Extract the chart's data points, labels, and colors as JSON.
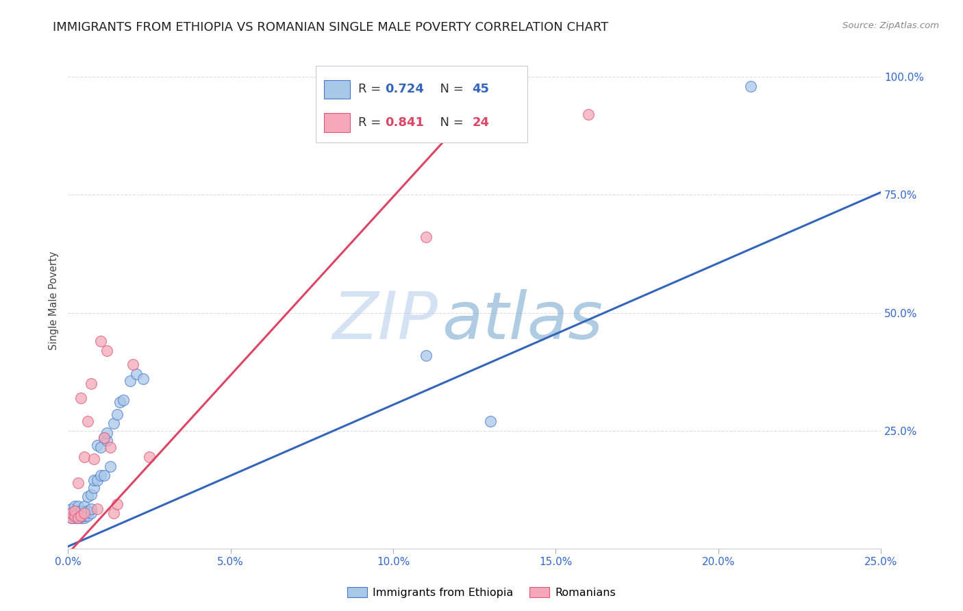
{
  "title": "IMMIGRANTS FROM ETHIOPIA VS ROMANIAN SINGLE MALE POVERTY CORRELATION CHART",
  "source": "Source: ZipAtlas.com",
  "ylabel": "Single Male Poverty",
  "xlim": [
    0.0,
    0.25
  ],
  "ylim": [
    0.0,
    1.05
  ],
  "xticks": [
    0.0,
    0.05,
    0.1,
    0.15,
    0.2,
    0.25
  ],
  "yticks": [
    0.0,
    0.25,
    0.5,
    0.75,
    1.0
  ],
  "xticklabels": [
    "0.0%",
    "5.0%",
    "10.0%",
    "15.0%",
    "20.0%",
    "25.0%"
  ],
  "yticklabels_right": [
    "",
    "25.0%",
    "50.0%",
    "75.0%",
    "100.0%"
  ],
  "blue_R": 0.724,
  "blue_N": 45,
  "pink_R": 0.841,
  "pink_N": 24,
  "blue_color": "#A8C8E8",
  "pink_color": "#F4A8B8",
  "blue_edge_color": "#4477CC",
  "pink_edge_color": "#DD5577",
  "blue_line_color": "#3366BB",
  "pink_line_color": "#DD4466",
  "blue_scatter_x": [
    0.001,
    0.001,
    0.001,
    0.002,
    0.002,
    0.002,
    0.002,
    0.003,
    0.003,
    0.003,
    0.003,
    0.004,
    0.004,
    0.004,
    0.005,
    0.005,
    0.005,
    0.005,
    0.006,
    0.006,
    0.006,
    0.007,
    0.007,
    0.007,
    0.008,
    0.008,
    0.009,
    0.009,
    0.01,
    0.01,
    0.011,
    0.011,
    0.012,
    0.012,
    0.013,
    0.014,
    0.015,
    0.016,
    0.017,
    0.019,
    0.021,
    0.023,
    0.11,
    0.13,
    0.21
  ],
  "blue_scatter_y": [
    0.065,
    0.075,
    0.085,
    0.065,
    0.07,
    0.08,
    0.09,
    0.065,
    0.07,
    0.08,
    0.09,
    0.065,
    0.07,
    0.08,
    0.065,
    0.07,
    0.08,
    0.09,
    0.07,
    0.08,
    0.11,
    0.075,
    0.085,
    0.115,
    0.13,
    0.145,
    0.145,
    0.22,
    0.155,
    0.215,
    0.155,
    0.235,
    0.23,
    0.245,
    0.175,
    0.265,
    0.285,
    0.31,
    0.315,
    0.355,
    0.37,
    0.36,
    0.41,
    0.27,
    0.98
  ],
  "pink_scatter_x": [
    0.001,
    0.001,
    0.002,
    0.002,
    0.003,
    0.003,
    0.004,
    0.004,
    0.005,
    0.005,
    0.006,
    0.007,
    0.008,
    0.009,
    0.01,
    0.011,
    0.012,
    0.013,
    0.014,
    0.015,
    0.02,
    0.025,
    0.11,
    0.16
  ],
  "pink_scatter_y": [
    0.065,
    0.075,
    0.07,
    0.08,
    0.065,
    0.14,
    0.07,
    0.32,
    0.075,
    0.195,
    0.27,
    0.35,
    0.19,
    0.085,
    0.44,
    0.235,
    0.42,
    0.215,
    0.075,
    0.095,
    0.39,
    0.195,
    0.66,
    0.92
  ],
  "blue_line_x": [
    0.0,
    0.25
  ],
  "blue_line_y": [
    0.005,
    0.755
  ],
  "pink_line_x": [
    0.0,
    0.135
  ],
  "pink_line_y": [
    -0.01,
    1.01
  ],
  "watermark_zip": "ZIP",
  "watermark_atlas": "atlas",
  "title_fontsize": 13,
  "axis_label_fontsize": 10.5,
  "tick_fontsize": 11,
  "background_color": "#FFFFFF",
  "grid_color": "#DDDDDD"
}
